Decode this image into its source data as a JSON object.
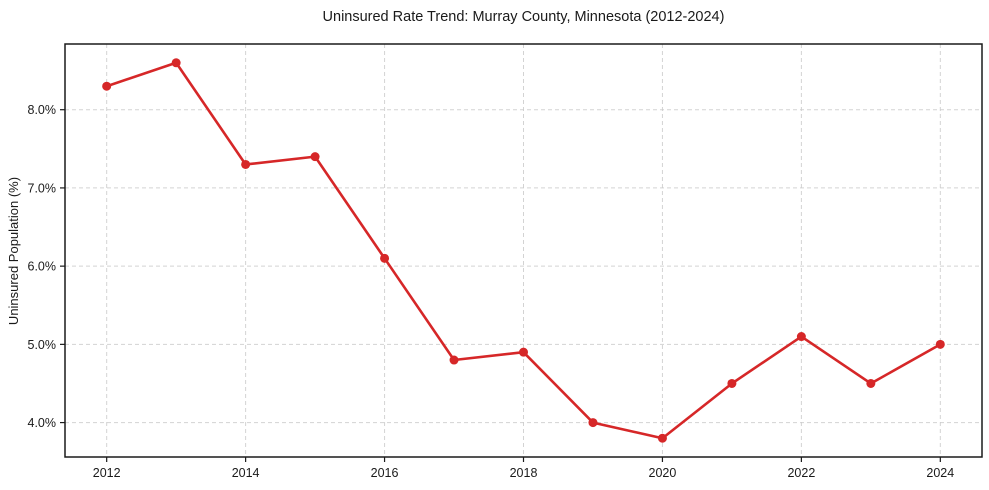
{
  "chart_data": {
    "type": "line",
    "title": "Uninsured Rate Trend: Murray County, Minnesota (2012-2024)",
    "xlabel": "",
    "ylabel": "Uninsured Population (%)",
    "x": [
      2012,
      2013,
      2014,
      2015,
      2016,
      2017,
      2018,
      2019,
      2020,
      2021,
      2022,
      2023,
      2024
    ],
    "values": [
      8.3,
      8.6,
      7.3,
      7.4,
      6.1,
      4.8,
      4.9,
      4.0,
      3.8,
      4.5,
      5.1,
      4.5,
      5.0
    ],
    "xtick_values": [
      2012,
      2014,
      2016,
      2018,
      2020,
      2022,
      2024
    ],
    "xtick_labels": [
      "2012",
      "2014",
      "2016",
      "2018",
      "2020",
      "2022",
      "2024"
    ],
    "ytick_values": [
      4.0,
      5.0,
      6.0,
      7.0,
      8.0
    ],
    "ytick_labels": [
      "4.0%",
      "5.0%",
      "6.0%",
      "7.0%",
      "8.0%"
    ],
    "xlim": [
      2011.4,
      2024.6
    ],
    "ylim": [
      3.56,
      8.84
    ],
    "grid": "dashed",
    "legend": "none",
    "marker": "circle",
    "colors": {
      "line": "#d62728",
      "marker": "#d62728",
      "grid": "#cccccc",
      "spine": "#1a1a1a",
      "text": "#1a1a1a",
      "background": "#ffffff"
    }
  }
}
